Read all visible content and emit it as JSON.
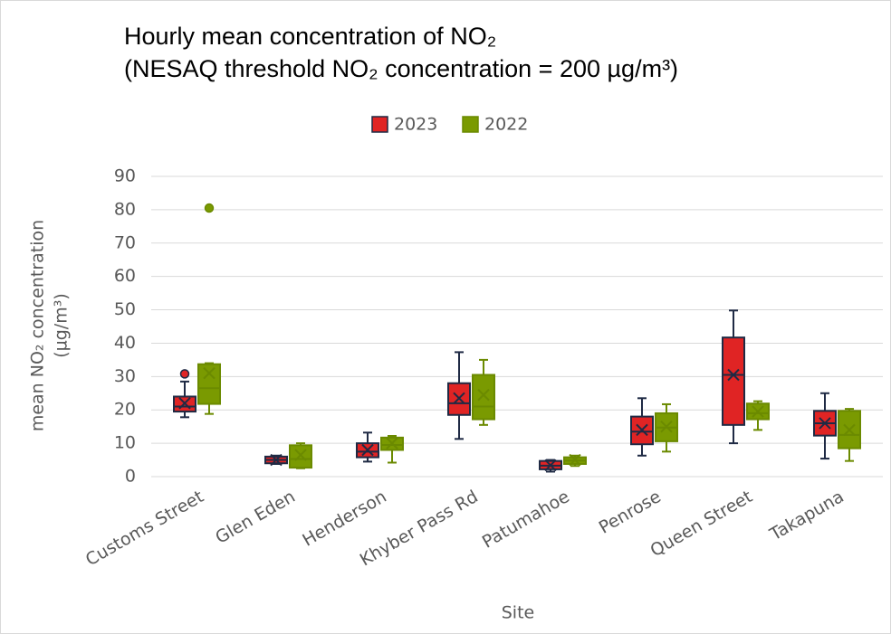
{
  "chart_data": {
    "type": "box",
    "title": [
      "Hourly mean concentration of NO₂",
      "(NESAQ threshold NO₂ concentration = 200 µg/m³)"
    ],
    "y_label": [
      "mean NO₂ concentration",
      "(µg/m³)"
    ],
    "x_label": "Site",
    "categories": [
      "Customs Street",
      "Glen Eden",
      "Henderson",
      "Khyber Pass Rd",
      "Patumahoe",
      "Penrose",
      "Queen Street",
      "Takapuna"
    ],
    "ylim": [
      0,
      90
    ],
    "yticks": [
      0,
      10,
      20,
      30,
      40,
      50,
      60,
      70,
      80,
      90
    ],
    "grid": true,
    "legend": "top",
    "series": [
      {
        "name": "2023",
        "color": "#e02424",
        "edge": "#1f2a44",
        "min": [
          17.8,
          3.8,
          4.5,
          11.3,
          1.5,
          6.3,
          10,
          5.4
        ],
        "q1": [
          19.5,
          4,
          5.8,
          18.5,
          2.2,
          9.7,
          15.5,
          12.3
        ],
        "median": [
          21,
          5,
          7.5,
          22,
          3.3,
          13.5,
          30.5,
          16
        ],
        "q3": [
          24,
          6,
          10,
          28,
          4.7,
          18,
          41.7,
          19.7
        ],
        "max": [
          28.5,
          6.3,
          13.2,
          37.3,
          5,
          23.5,
          49.8,
          25
        ],
        "mean": [
          22,
          5,
          8,
          23.5,
          3.4,
          14,
          30.5,
          16
        ],
        "outliers": [
          [
            30.8
          ],
          [],
          [],
          [],
          [],
          [],
          [],
          []
        ]
      },
      {
        "name": "2022",
        "color": "#7a9a01",
        "edge": "#6b8a00",
        "min": [
          18.8,
          2.5,
          4.2,
          15.5,
          3.2,
          7.5,
          14,
          4.7
        ],
        "q1": [
          21.8,
          2.7,
          8,
          17.2,
          3.8,
          10.6,
          17.2,
          8.5
        ],
        "median": [
          26.5,
          5.3,
          9.5,
          21,
          4.8,
          14.7,
          19,
          12.5
        ],
        "q3": [
          33.7,
          9.4,
          11.7,
          30.5,
          5.8,
          19,
          21.9,
          19.7
        ],
        "max": [
          34,
          10,
          12.2,
          35,
          6.3,
          21.7,
          22.6,
          20.3
        ],
        "mean": [
          31,
          6.5,
          10,
          24.5,
          5,
          15,
          19.5,
          14
        ],
        "outliers": [
          [
            80.5
          ],
          [],
          [],
          [],
          [],
          [],
          [],
          []
        ]
      }
    ]
  }
}
